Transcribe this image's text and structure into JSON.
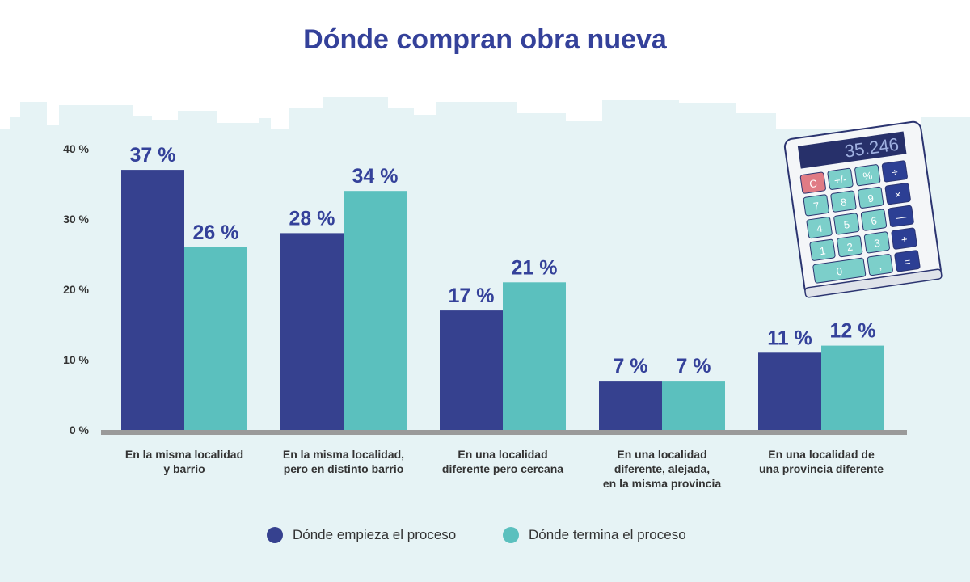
{
  "colors": {
    "start": "#36418f",
    "end": "#5bc0be",
    "title": "#34419a",
    "background": "#e6f3f5",
    "axis": "#9a9a9a"
  },
  "calculator": {
    "display": "35.246",
    "keys": [
      "C",
      "+/-",
      "%",
      "÷",
      "7",
      "8",
      "9",
      "×",
      "4",
      "5",
      "6",
      "—",
      "1",
      "2",
      "3",
      "+",
      "0",
      ",",
      "="
    ]
  },
  "chart_data": {
    "type": "bar",
    "title": "Dónde compran obra nueva",
    "categories": [
      "En la misma localidad\ny barrio",
      "En la misma localidad,\npero en distinto barrio",
      "En una localidad\ndiferente pero cercana",
      "En una localidad\ndiferente, alejada,\nen la misma provincia",
      "En una localidad de\nuna provincia diferente"
    ],
    "series": [
      {
        "name": "Dónde empieza el proceso",
        "values": [
          37,
          28,
          17,
          7,
          11
        ],
        "labels": [
          "37 %",
          "28 %",
          "17 %",
          "7 %",
          "11 %"
        ]
      },
      {
        "name": "Dónde termina el proceso",
        "values": [
          26,
          34,
          21,
          7,
          12
        ],
        "labels": [
          "26 %",
          "34 %",
          "21 %",
          "7 %",
          "12 %"
        ]
      }
    ],
    "yticks": [
      0,
      10,
      20,
      30,
      40
    ],
    "ytick_labels": [
      "0 %",
      "10 %",
      "20 %",
      "30 %",
      "40 %"
    ],
    "ylim": [
      0,
      40
    ],
    "grid": false,
    "legend": "bottom"
  }
}
